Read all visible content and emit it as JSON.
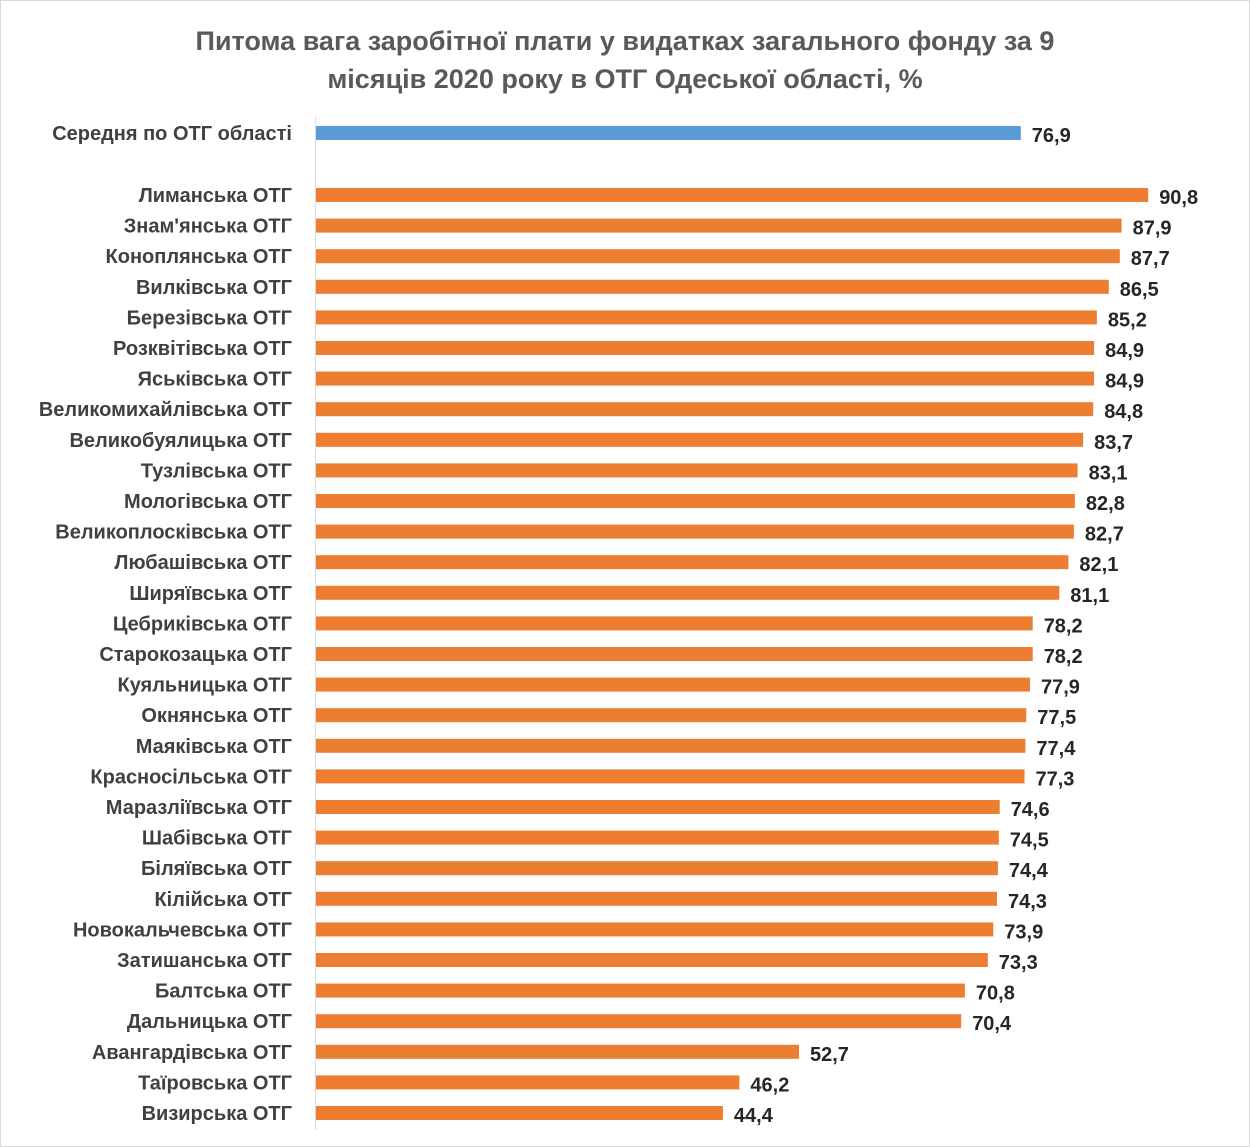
{
  "chart_data": {
    "type": "bar",
    "orientation": "horizontal",
    "title_lines": [
      "Питома вага заробітної плати у видатках загального фонду за 9",
      "місяців 2020 року в ОТГ Одеської області, %"
    ],
    "xlabel": "",
    "ylabel": "",
    "xlim": [
      0,
      100
    ],
    "grid": false,
    "legend": "none",
    "colors": {
      "average": "#5b9bd5",
      "community": "#ed7d31",
      "axis": "#d9d9d9"
    },
    "average": {
      "category": "Середня по ОТГ області",
      "value": 76.9,
      "label": "76,9"
    },
    "categories": [
      "Лиманська ОТГ",
      "Знам'янська ОТГ",
      "Коноплянська ОТГ",
      "Вилківська  ОТГ",
      "Березівська ОТГ",
      "Розквітівська  ОТГ",
      "Яськівська  ОТГ",
      "Великомихайлівська ОТГ",
      "Великобуялицька ОТГ",
      "Тузлівська ОТГ",
      "Мологівська ОТГ",
      "Великоплосківська ОТГ",
      "Любашівська ОТГ",
      "Ширяївська  ОТГ",
      "Цебриківська ОТГ",
      "Старокозацька ОТГ",
      "Куяльницька ОТГ",
      "Окнянська ОТГ",
      "Маяківська  ОТГ",
      "Красносільська  ОТГ",
      "Маразліївська ОТГ",
      "Шабівська ОТГ",
      "Біляївська ОТГ",
      "Кілійська ОТГ",
      "Новокальчевська ОТГ",
      "Затишанська ОТГ",
      "Балтська ОТГ",
      "Дальницька ОТГ",
      "Авангардівська ОТГ",
      "Таїровська ОТГ",
      "Визирська ОТГ"
    ],
    "values": [
      90.8,
      87.9,
      87.7,
      86.5,
      85.2,
      84.9,
      84.9,
      84.8,
      83.7,
      83.1,
      82.8,
      82.7,
      82.1,
      81.1,
      78.2,
      78.2,
      77.9,
      77.5,
      77.4,
      77.3,
      74.6,
      74.5,
      74.4,
      74.3,
      73.9,
      73.3,
      70.8,
      70.4,
      52.7,
      46.2,
      44.4
    ],
    "value_labels": [
      "90,8",
      "87,9",
      "87,7",
      "86,5",
      "85,2",
      "84,9",
      "84,9",
      "84,8",
      "83,7",
      "83,1",
      "82,8",
      "82,7",
      "82,1",
      "81,1",
      "78,2",
      "78,2",
      "77,9",
      "77,5",
      "77,4",
      "77,3",
      "74,6",
      "74,5",
      "74,4",
      "74,3",
      "73,9",
      "73,3",
      "70,8",
      "70,4",
      "52,7",
      "46,2",
      "44,4"
    ]
  }
}
